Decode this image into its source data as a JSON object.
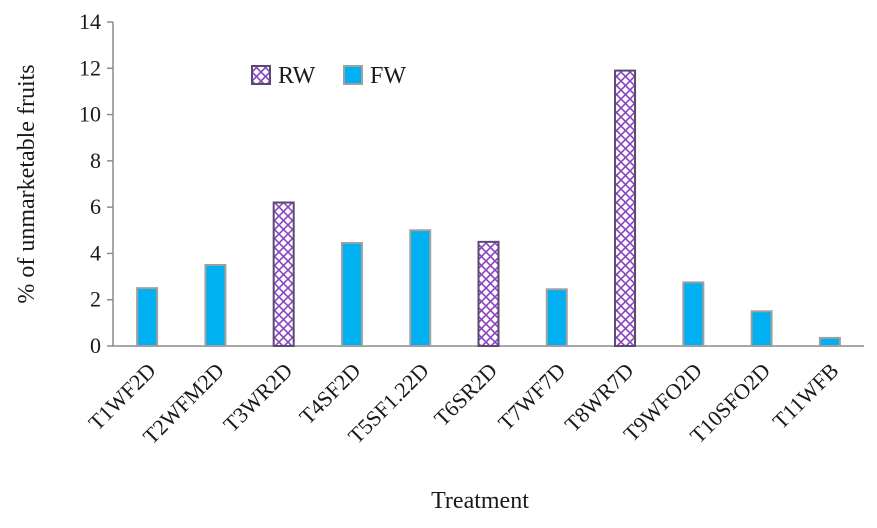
{
  "chart_data": {
    "type": "bar",
    "title": "",
    "xlabel": "Treatment",
    "ylabel": "% of unmarketable fruits",
    "ylim": [
      0,
      14
    ],
    "yticks": [
      0,
      2,
      4,
      6,
      8,
      10,
      12,
      14
    ],
    "grid": false,
    "legend_position": "top-left",
    "categories": [
      "T1WF2D",
      "T2WFM2D",
      "T3WR2D",
      "T4SF2D",
      "T5SF1.22D",
      "T6SR2D",
      "T7WF7D",
      "T8WR7D",
      "T9WFO2D",
      "T10SFO2D",
      "T11WFB"
    ],
    "series": [
      {
        "name": "RW",
        "values": [
          null,
          null,
          6.2,
          null,
          null,
          4.5,
          null,
          11.9,
          null,
          null,
          null
        ],
        "style": "cross-hatch",
        "color": "#6a3d9a"
      },
      {
        "name": "FW",
        "values": [
          2.5,
          3.5,
          null,
          4.45,
          5.0,
          null,
          2.45,
          null,
          2.75,
          1.5,
          0.35
        ],
        "style": "solid",
        "color": "#00b0f0"
      }
    ]
  }
}
